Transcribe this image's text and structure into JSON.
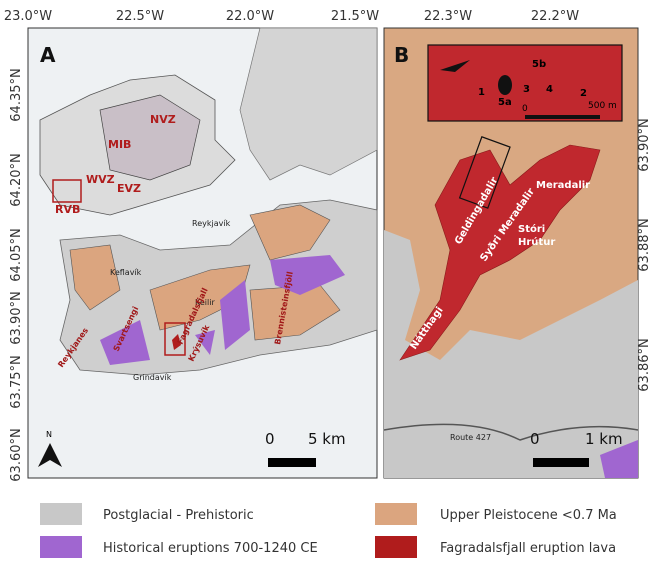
{
  "axes": {
    "top_a": [
      "23.0°W",
      "22.5°W",
      "22.0°W",
      "21.5°W"
    ],
    "top_b": [
      "22.3°W",
      "22.2°W"
    ],
    "left_a": [
      "64.35°N",
      "64.20°N",
      "64.05°N",
      "63.90°N",
      "63.75°N",
      "63.60°N"
    ],
    "right_b": [
      "63.90°N",
      "63.88°N",
      "63.86°N"
    ]
  },
  "panel_a": {
    "label": "A",
    "zones": [
      "NVZ",
      "MIB",
      "WVZ",
      "EVZ",
      "RVB"
    ],
    "places": [
      "Reykjavík",
      "Keflavík",
      "Keilir",
      "Grindavík"
    ],
    "systems": [
      "Fagradalsfjall",
      "Reykjanes",
      "Svartsengi",
      "Krýsuvík",
      "Brennisteinsfjöll"
    ],
    "scale": [
      "0",
      "5 km"
    ],
    "north": "N"
  },
  "panel_b": {
    "label": "B",
    "places": [
      "Meradalir",
      "Geldingadalir",
      "Syðri Meradalir",
      "Stóri",
      "Hrútur",
      "Nátthagi",
      "Route 427"
    ],
    "scale": [
      "0",
      "1 km"
    ],
    "inset": {
      "vents": [
        "1",
        "5a",
        "3",
        "4",
        "5b",
        "2"
      ],
      "scale": [
        "0",
        "500 m"
      ]
    }
  },
  "legend": [
    "Postglacial - Prehistoric",
    "Upper Pleistocene <0.7 Ma",
    "Historical eruptions 700-1240 CE",
    "Fagradalsfjall eruption lava"
  ]
}
